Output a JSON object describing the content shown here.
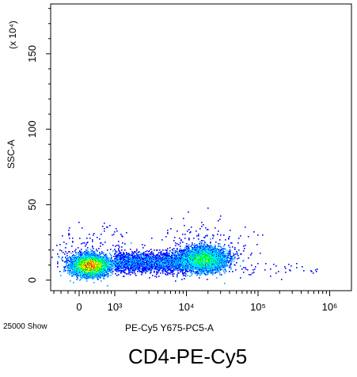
{
  "chart_data": {
    "type": "scatter",
    "title": "CD4-PE-Cy5",
    "xlabel": "PE-Cy5 Y675-PC5-A",
    "ylabel": "SSC-A",
    "y_multiplier_label": "(x 10⁴)",
    "event_count_label": "25000 Show",
    "x_scale": "log",
    "x_tick_labels": [
      "0",
      "10³",
      "10⁴",
      "10⁵",
      "10⁶"
    ],
    "x_tick_values": [
      0,
      1000,
      10000,
      100000,
      1000000
    ],
    "y_tick_labels": [
      "0",
      "50",
      "100",
      "150"
    ],
    "y_tick_values": [
      0,
      50,
      100,
      150
    ],
    "ylim": [
      -7,
      183
    ],
    "grid": false,
    "legend": "none",
    "density_colors": [
      "#0000ff",
      "#00a0ff",
      "#00ffff",
      "#00ff00",
      "#ffff00",
      "#ff8000",
      "#ff0000"
    ],
    "populations": [
      {
        "name": "CD4-negative cluster",
        "x_center": 300,
        "y_center": 10,
        "events": 14000
      },
      {
        "name": "CD4-positive cluster",
        "x_center": 17000,
        "y_center": 14,
        "events": 8500
      },
      {
        "name": "bridging events",
        "x_range": [
          1000,
          10000
        ],
        "y_center": 12,
        "events": 2500
      }
    ]
  }
}
